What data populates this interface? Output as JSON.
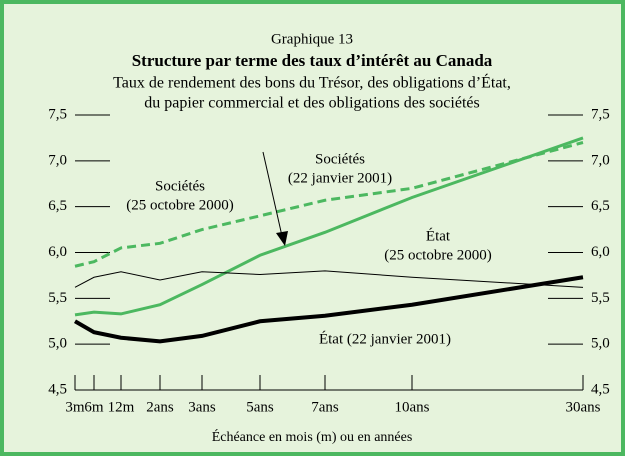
{
  "chart_data": {
    "type": "line",
    "kicker": "Graphique 13",
    "title": "Structure par terme des taux d’intérêt au Canada",
    "subtitle": [
      "Taux de rendement des bons du Trésor, des obligations d’État,",
      "du papier commercial et des obligations des sociétés"
    ],
    "x_label": "Échéance en mois (m) ou en années",
    "categories": [
      "3m",
      "6m",
      "12m",
      "2ans",
      "3ans",
      "5ans",
      "7ans",
      "10ans",
      "30ans"
    ],
    "ylim": [
      4.5,
      7.5
    ],
    "yticks": [
      {
        "value": 4.5,
        "label": "4,5"
      },
      {
        "value": 5.0,
        "label": "5,0"
      },
      {
        "value": 5.5,
        "label": "5,5"
      },
      {
        "value": 6.0,
        "label": "6,0"
      },
      {
        "value": 6.5,
        "label": "6,5"
      },
      {
        "value": 7.0,
        "label": "7,0"
      },
      {
        "value": 7.5,
        "label": "7,5"
      }
    ],
    "series": [
      {
        "label_lines": [
          "Sociétés",
          "(25 octobre 2000)"
        ],
        "color": "#4cb860",
        "dash": true,
        "width": 3,
        "values": [
          5.85,
          5.9,
          6.05,
          6.1,
          6.25,
          6.4,
          6.57,
          6.7,
          7.2
        ]
      },
      {
        "label_lines": [
          "Sociétés",
          "(22 janvier 2001)"
        ],
        "color": "#4cb860",
        "dash": false,
        "width": 3,
        "values": [
          5.32,
          5.35,
          5.33,
          5.43,
          5.65,
          5.97,
          6.22,
          6.6,
          7.25
        ]
      },
      {
        "label_lines": [
          "État",
          "(25 octobre 2000)"
        ],
        "color": "#000000",
        "dash": false,
        "width": 1,
        "values": [
          5.62,
          5.73,
          5.79,
          5.7,
          5.79,
          5.76,
          5.8,
          5.73,
          5.62
        ]
      },
      {
        "label_lines": [
          "État (22 janvier 2001)"
        ],
        "color": "#000000",
        "dash": false,
        "width": 4,
        "values": [
          5.25,
          5.13,
          5.07,
          5.03,
          5.09,
          5.25,
          5.31,
          5.43,
          5.73
        ]
      }
    ]
  }
}
